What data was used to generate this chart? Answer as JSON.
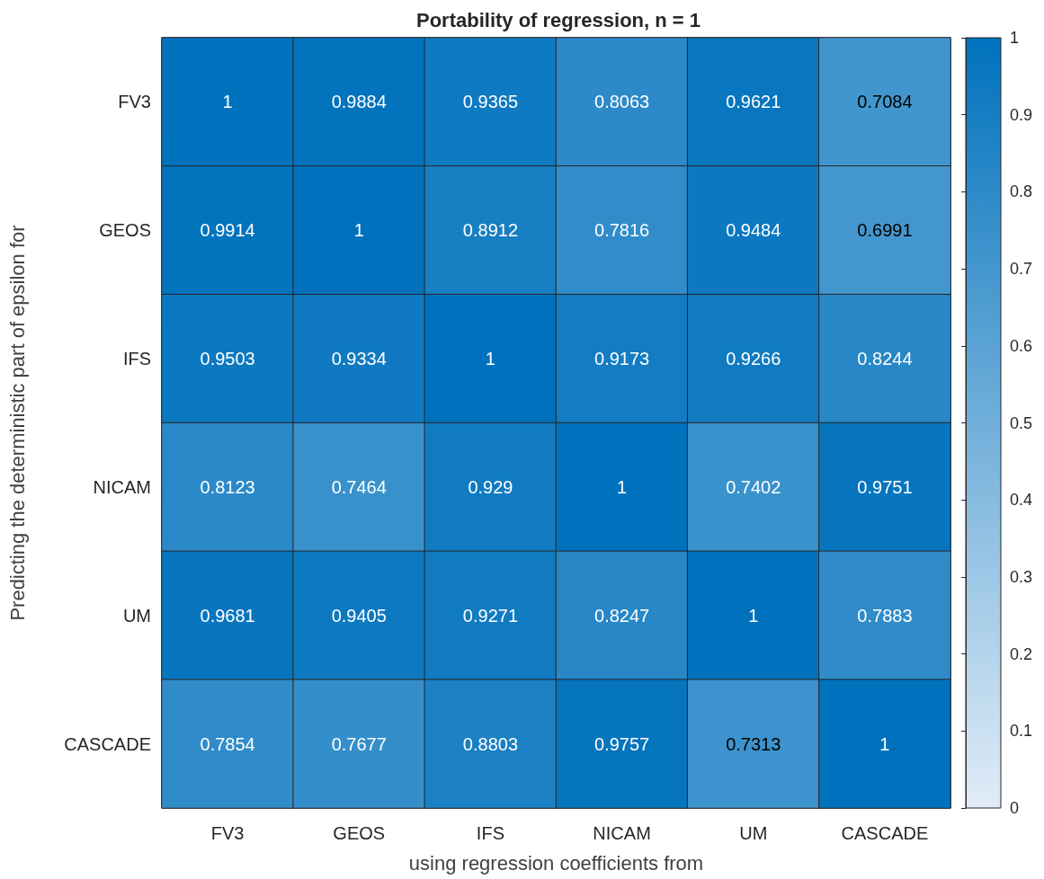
{
  "chart_data": {
    "type": "heatmap",
    "title": "Portability of regression, n = 1",
    "xlabel": "using regression coefficients from",
    "ylabel": "Predicting the deterministic part of epsilon for",
    "categories": [
      "FV3",
      "GEOS",
      "IFS",
      "NICAM",
      "UM",
      "CASCADE"
    ],
    "y_categories": [
      "FV3",
      "GEOS",
      "IFS",
      "NICAM",
      "UM",
      "CASCADE"
    ],
    "cells": [
      [
        1,
        0.9884,
        0.9365,
        0.8063,
        0.9621,
        0.7084
      ],
      [
        0.9914,
        1,
        0.8912,
        0.7816,
        0.9484,
        0.6991
      ],
      [
        0.9503,
        0.9334,
        1,
        0.9173,
        0.9266,
        0.8244
      ],
      [
        0.8123,
        0.7464,
        0.929,
        1,
        0.7402,
        0.9751
      ],
      [
        0.9681,
        0.9405,
        0.9271,
        0.8247,
        1,
        0.7883
      ],
      [
        0.7854,
        0.7677,
        0.8803,
        0.9757,
        0.7313,
        1
      ]
    ],
    "data_labels": true,
    "clim": [
      0,
      1
    ],
    "cticks": [
      0,
      0.1,
      0.2,
      0.3,
      0.4,
      0.5,
      0.6,
      0.7,
      0.8,
      0.9,
      1
    ]
  }
}
